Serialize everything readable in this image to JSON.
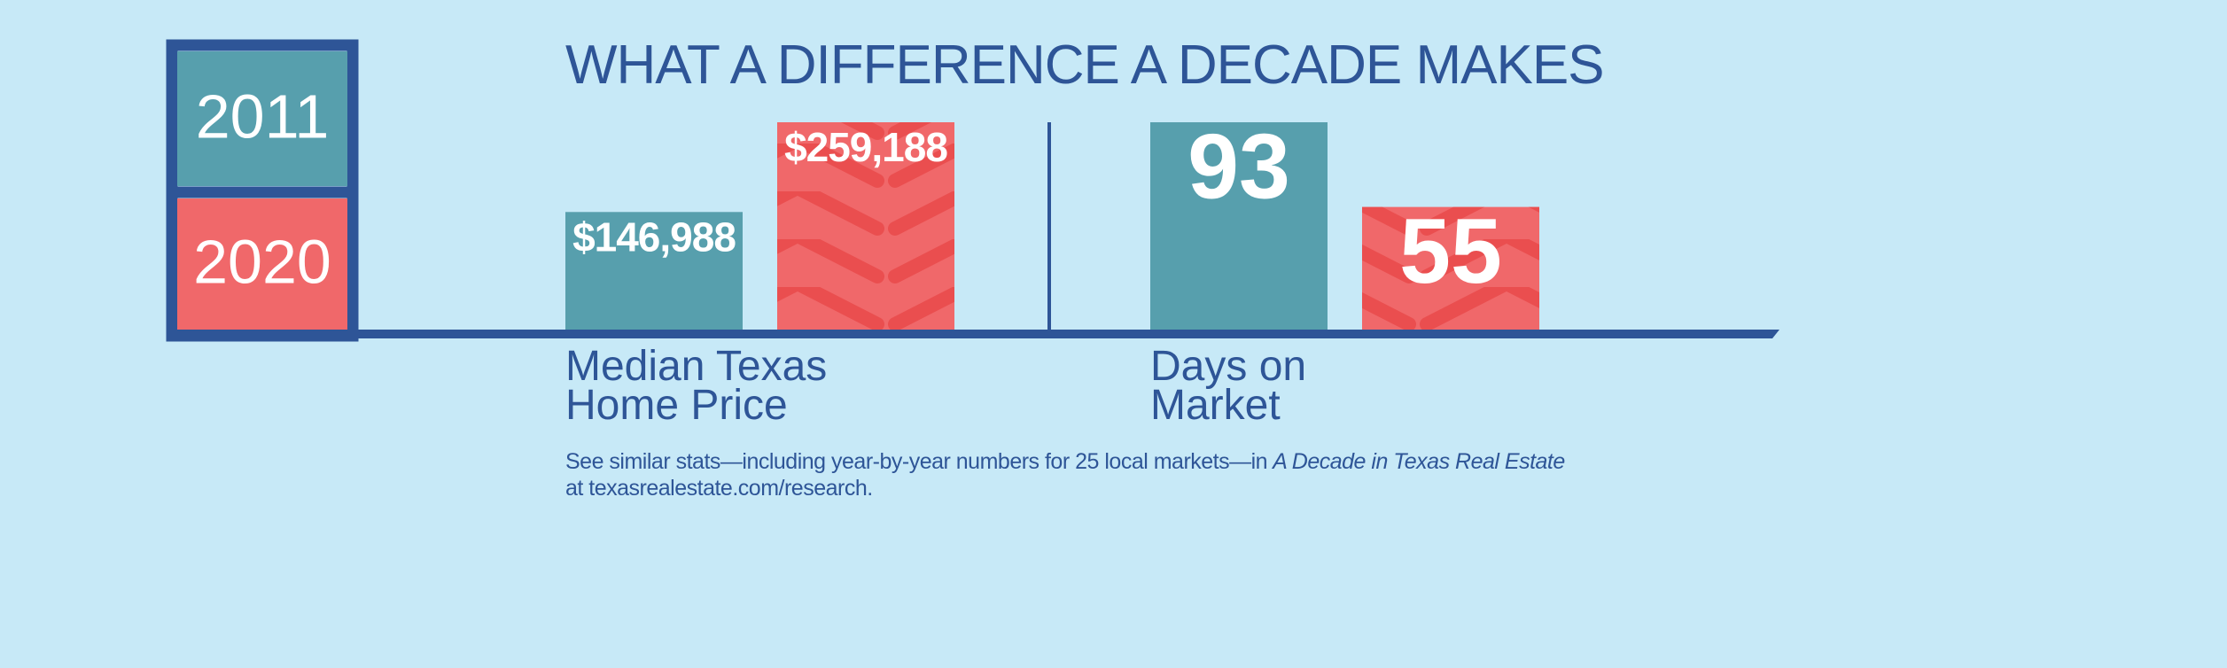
{
  "chart_data": {
    "type": "bar",
    "title": "WHAT A DIFFERENCE A DECADE MAKES",
    "categories": [
      "Median Texas Home Price",
      "Days on Market"
    ],
    "series": [
      {
        "name": "2011",
        "color": "#579fad",
        "values": [
          146988,
          93
        ],
        "value_labels": [
          "$146,988",
          "93"
        ]
      },
      {
        "name": "2020",
        "color": "#f0686a",
        "values": [
          259188,
          55
        ],
        "value_labels": [
          "$259,188",
          "55"
        ]
      }
    ],
    "footnote": {
      "text": "See similar stats—including year-by-year numbers for 25 local markets—in",
      "source": "A Decade in Texas Real Estate",
      "link": "at texasrealestate.com/research."
    }
  }
}
